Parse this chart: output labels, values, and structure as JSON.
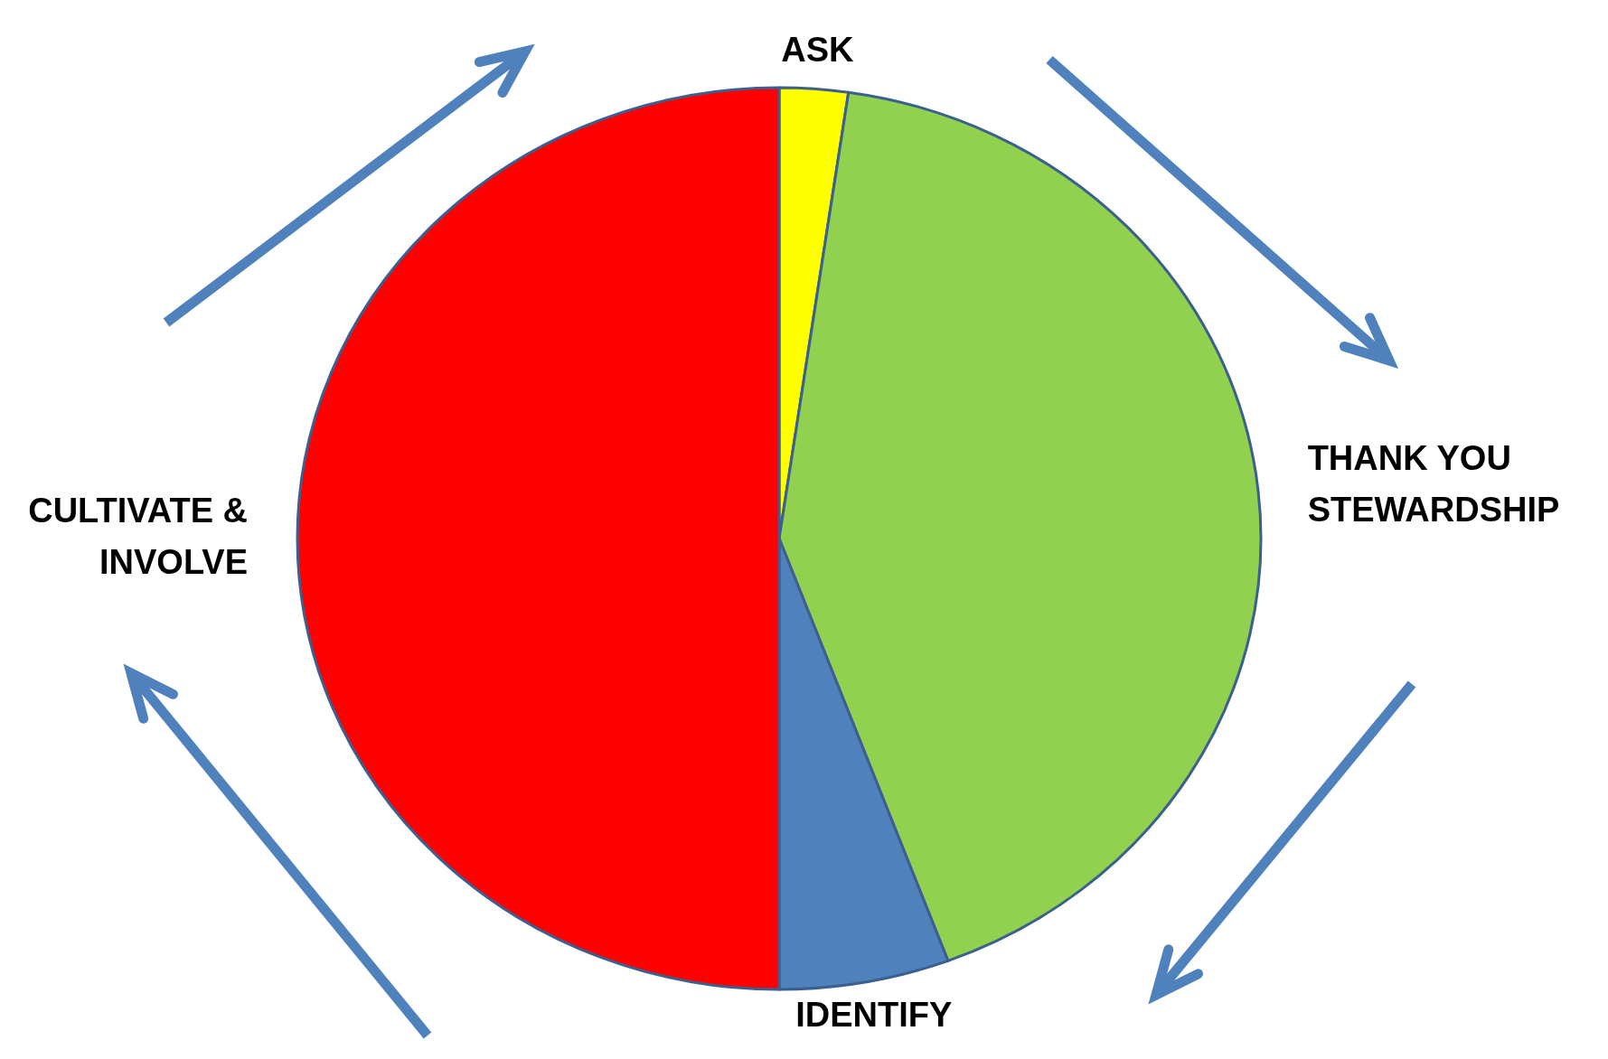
{
  "chart_data": {
    "type": "pie",
    "categories": [
      "ASK",
      "THANK YOU STEWARDSHIP",
      "IDENTIFY",
      "CULTIVATE & INVOLVE"
    ],
    "values": [
      2.3,
      42,
      5.7,
      50
    ],
    "colors": [
      "#ffff00",
      "#92d050",
      "#4f81bd",
      "#ff0000"
    ]
  }
}
